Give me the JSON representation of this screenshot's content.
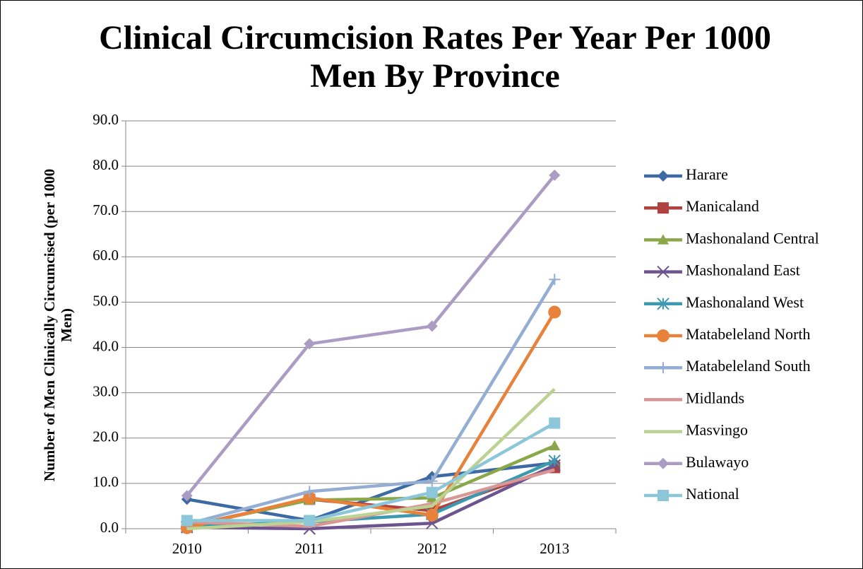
{
  "chart_data": {
    "type": "line",
    "title": [
      "Clinical Circumcision Rates Per Year Per 1000",
      "Men By Province"
    ],
    "ylabel": [
      "Number of Men Clinically Circumcised (per 1000",
      "Men)"
    ],
    "categories": [
      "2010",
      "2011",
      "2012",
      "2013"
    ],
    "ylim": [
      0,
      90
    ],
    "yticks": [
      {
        "value": 0,
        "label": "0.0"
      },
      {
        "value": 10,
        "label": "10.0"
      },
      {
        "value": 20,
        "label": "20.0"
      },
      {
        "value": 30,
        "label": "30.0"
      },
      {
        "value": 40,
        "label": "40.0"
      },
      {
        "value": 50,
        "label": "50.0"
      },
      {
        "value": 60,
        "label": "60.0"
      },
      {
        "value": 70,
        "label": "70.0"
      },
      {
        "value": 80,
        "label": "80.0"
      },
      {
        "value": 90,
        "label": "90.0"
      }
    ],
    "grid": true,
    "legend": "right",
    "series": [
      {
        "name": "Harare",
        "color": "#3d6aa3",
        "marker": "diamond",
        "values": [
          6.5,
          1.8,
          11.5,
          14.5
        ]
      },
      {
        "name": "Manicaland",
        "color": "#b0413e",
        "marker": "square",
        "values": [
          0.5,
          6.5,
          4.0,
          13.5
        ]
      },
      {
        "name": "Mashonaland Central",
        "color": "#8aa84a",
        "marker": "triangle",
        "values": [
          0.5,
          6.3,
          6.8,
          18.3
        ]
      },
      {
        "name": "Mashonaland East",
        "color": "#6e548f",
        "marker": "x",
        "values": [
          0.3,
          0.0,
          1.2,
          14.0
        ]
      },
      {
        "name": "Mashonaland West",
        "color": "#3c99b0",
        "marker": "star",
        "values": [
          0.5,
          1.5,
          3.2,
          15.0
        ]
      },
      {
        "name": "Matabeleland North",
        "color": "#e8823a",
        "marker": "circle",
        "values": [
          0.2,
          6.8,
          3.0,
          47.8
        ]
      },
      {
        "name": "Matabeleland South",
        "color": "#94add3",
        "marker": "plus",
        "values": [
          1.0,
          8.2,
          10.5,
          55.0
        ]
      },
      {
        "name": "Midlands",
        "color": "#d99694",
        "marker": "none",
        "values": [
          1.5,
          0.5,
          5.5,
          13.0
        ]
      },
      {
        "name": "Masvingo",
        "color": "#bcd293",
        "marker": "none",
        "values": [
          0.0,
          1.5,
          5.0,
          30.8
        ]
      },
      {
        "name": "Bulawayo",
        "color": "#ab9cc4",
        "marker": "diamond",
        "values": [
          7.3,
          40.8,
          44.7,
          78.0
        ]
      },
      {
        "name": "National",
        "color": "#8cc7d9",
        "marker": "square",
        "values": [
          1.8,
          1.8,
          8.0,
          23.3
        ]
      }
    ]
  }
}
